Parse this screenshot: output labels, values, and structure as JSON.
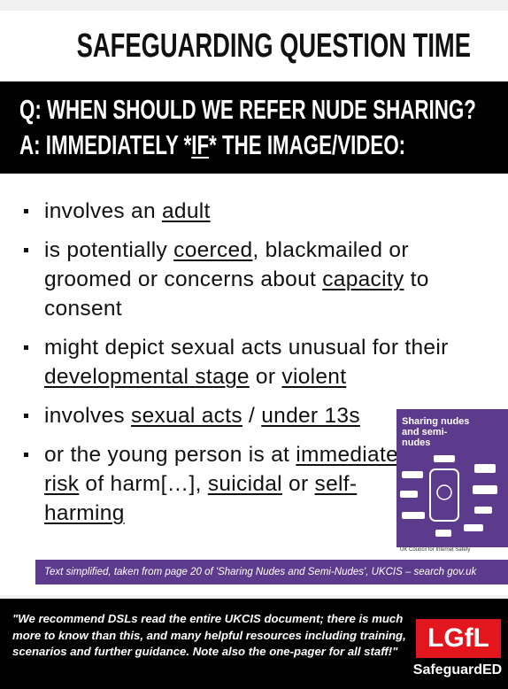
{
  "header": {
    "title": "SAFEGUARDING QUESTION TIME"
  },
  "question": {
    "q": "Q: WHEN SHOULD WE REFER NUDE SHARING?",
    "a": [
      {
        "text": "A: IMMEDIATELY *"
      },
      {
        "text": "IF",
        "underline": true
      },
      {
        "text": "* THE IMAGE/VIDEO:"
      }
    ]
  },
  "bullets": [
    [
      {
        "text": "involves an "
      },
      {
        "text": "adult",
        "underline": true
      }
    ],
    [
      {
        "text": "is potentially "
      },
      {
        "text": "coerced",
        "underline": true
      },
      {
        "text": ", blackmailed or groomed or concerns about "
      },
      {
        "text": "capacity",
        "underline": true
      },
      {
        "text": " to consent"
      }
    ],
    [
      {
        "text": "might depict sexual acts unusual for their "
      },
      {
        "text": "developmental stage",
        "underline": true
      },
      {
        "text": " or "
      },
      {
        "text": "violent",
        "underline": true
      }
    ],
    [
      {
        "text": "involves "
      },
      {
        "text": "sexual acts",
        "underline": true
      },
      {
        "text": " / "
      },
      {
        "text": "under 13s",
        "underline": true
      }
    ],
    [
      {
        "text": "or the young person is at "
      },
      {
        "text": "immediate risk",
        "underline": true
      },
      {
        "text": " of harm[…], "
      },
      {
        "text": "suicidal",
        "underline": true
      },
      {
        "text": " or "
      },
      {
        "text": "self-harming",
        "underline": true
      }
    ]
  ],
  "booklet": {
    "title": "Sharing nudes and semi-nudes",
    "publisher": "UK Council for Internet Safety"
  },
  "caption": "Text simplified, taken from page 20 of 'Sharing Nudes and Semi-Nudes', UKCIS – search gov.uk",
  "footer": {
    "quote": "\"We recommend DSLs read the entire UKCIS document; there is much more to know than this, and many helpful resources including training, scenarios and further guidance. Note also the one-pager for all staff!\"",
    "logo": "LGfL",
    "brand": "SafeguardED"
  }
}
